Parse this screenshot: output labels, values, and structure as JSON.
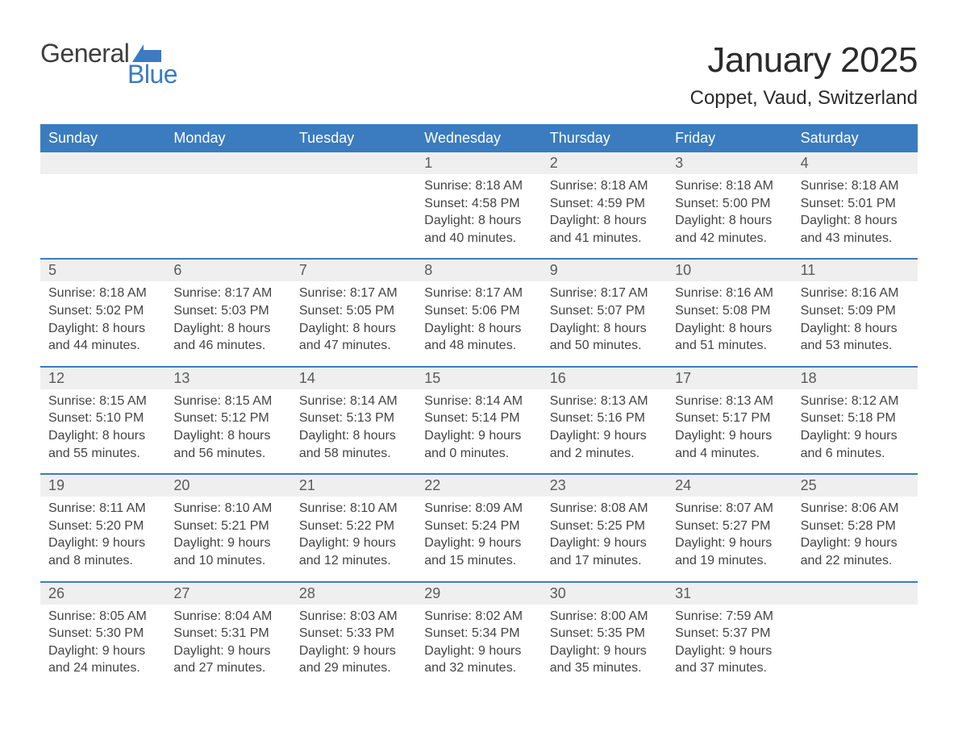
{
  "logo": {
    "word1": "General",
    "word2": "Blue",
    "icon_color": "#3a7cbf",
    "text_color": "#3e3e3e"
  },
  "title": "January 2025",
  "subtitle": "Coppet, Vaud, Switzerland",
  "colors": {
    "header_bg": "#3a7cbf",
    "header_text": "#ffffff",
    "daynum_bg": "#efefef",
    "daynum_text": "#5a5a5a",
    "body_text": "#444444",
    "week_border": "#3a7cbf",
    "page_bg": "#ffffff"
  },
  "typography": {
    "title_fontsize": 44,
    "subtitle_fontsize": 24,
    "header_fontsize": 18,
    "daynum_fontsize": 18,
    "body_fontsize": 16,
    "font_family": "Arial"
  },
  "layout": {
    "columns": 7,
    "rows": 5,
    "cell_min_height": 128
  },
  "day_names": [
    "Sunday",
    "Monday",
    "Tuesday",
    "Wednesday",
    "Thursday",
    "Friday",
    "Saturday"
  ],
  "weeks": [
    [
      {
        "day": "",
        "sunrise": "",
        "sunset": "",
        "daylight": ""
      },
      {
        "day": "",
        "sunrise": "",
        "sunset": "",
        "daylight": ""
      },
      {
        "day": "",
        "sunrise": "",
        "sunset": "",
        "daylight": ""
      },
      {
        "day": "1",
        "sunrise": "Sunrise: 8:18 AM",
        "sunset": "Sunset: 4:58 PM",
        "daylight": "Daylight: 8 hours and 40 minutes."
      },
      {
        "day": "2",
        "sunrise": "Sunrise: 8:18 AM",
        "sunset": "Sunset: 4:59 PM",
        "daylight": "Daylight: 8 hours and 41 minutes."
      },
      {
        "day": "3",
        "sunrise": "Sunrise: 8:18 AM",
        "sunset": "Sunset: 5:00 PM",
        "daylight": "Daylight: 8 hours and 42 minutes."
      },
      {
        "day": "4",
        "sunrise": "Sunrise: 8:18 AM",
        "sunset": "Sunset: 5:01 PM",
        "daylight": "Daylight: 8 hours and 43 minutes."
      }
    ],
    [
      {
        "day": "5",
        "sunrise": "Sunrise: 8:18 AM",
        "sunset": "Sunset: 5:02 PM",
        "daylight": "Daylight: 8 hours and 44 minutes."
      },
      {
        "day": "6",
        "sunrise": "Sunrise: 8:17 AM",
        "sunset": "Sunset: 5:03 PM",
        "daylight": "Daylight: 8 hours and 46 minutes."
      },
      {
        "day": "7",
        "sunrise": "Sunrise: 8:17 AM",
        "sunset": "Sunset: 5:05 PM",
        "daylight": "Daylight: 8 hours and 47 minutes."
      },
      {
        "day": "8",
        "sunrise": "Sunrise: 8:17 AM",
        "sunset": "Sunset: 5:06 PM",
        "daylight": "Daylight: 8 hours and 48 minutes."
      },
      {
        "day": "9",
        "sunrise": "Sunrise: 8:17 AM",
        "sunset": "Sunset: 5:07 PM",
        "daylight": "Daylight: 8 hours and 50 minutes."
      },
      {
        "day": "10",
        "sunrise": "Sunrise: 8:16 AM",
        "sunset": "Sunset: 5:08 PM",
        "daylight": "Daylight: 8 hours and 51 minutes."
      },
      {
        "day": "11",
        "sunrise": "Sunrise: 8:16 AM",
        "sunset": "Sunset: 5:09 PM",
        "daylight": "Daylight: 8 hours and 53 minutes."
      }
    ],
    [
      {
        "day": "12",
        "sunrise": "Sunrise: 8:15 AM",
        "sunset": "Sunset: 5:10 PM",
        "daylight": "Daylight: 8 hours and 55 minutes."
      },
      {
        "day": "13",
        "sunrise": "Sunrise: 8:15 AM",
        "sunset": "Sunset: 5:12 PM",
        "daylight": "Daylight: 8 hours and 56 minutes."
      },
      {
        "day": "14",
        "sunrise": "Sunrise: 8:14 AM",
        "sunset": "Sunset: 5:13 PM",
        "daylight": "Daylight: 8 hours and 58 minutes."
      },
      {
        "day": "15",
        "sunrise": "Sunrise: 8:14 AM",
        "sunset": "Sunset: 5:14 PM",
        "daylight": "Daylight: 9 hours and 0 minutes."
      },
      {
        "day": "16",
        "sunrise": "Sunrise: 8:13 AM",
        "sunset": "Sunset: 5:16 PM",
        "daylight": "Daylight: 9 hours and 2 minutes."
      },
      {
        "day": "17",
        "sunrise": "Sunrise: 8:13 AM",
        "sunset": "Sunset: 5:17 PM",
        "daylight": "Daylight: 9 hours and 4 minutes."
      },
      {
        "day": "18",
        "sunrise": "Sunrise: 8:12 AM",
        "sunset": "Sunset: 5:18 PM",
        "daylight": "Daylight: 9 hours and 6 minutes."
      }
    ],
    [
      {
        "day": "19",
        "sunrise": "Sunrise: 8:11 AM",
        "sunset": "Sunset: 5:20 PM",
        "daylight": "Daylight: 9 hours and 8 minutes."
      },
      {
        "day": "20",
        "sunrise": "Sunrise: 8:10 AM",
        "sunset": "Sunset: 5:21 PM",
        "daylight": "Daylight: 9 hours and 10 minutes."
      },
      {
        "day": "21",
        "sunrise": "Sunrise: 8:10 AM",
        "sunset": "Sunset: 5:22 PM",
        "daylight": "Daylight: 9 hours and 12 minutes."
      },
      {
        "day": "22",
        "sunrise": "Sunrise: 8:09 AM",
        "sunset": "Sunset: 5:24 PM",
        "daylight": "Daylight: 9 hours and 15 minutes."
      },
      {
        "day": "23",
        "sunrise": "Sunrise: 8:08 AM",
        "sunset": "Sunset: 5:25 PM",
        "daylight": "Daylight: 9 hours and 17 minutes."
      },
      {
        "day": "24",
        "sunrise": "Sunrise: 8:07 AM",
        "sunset": "Sunset: 5:27 PM",
        "daylight": "Daylight: 9 hours and 19 minutes."
      },
      {
        "day": "25",
        "sunrise": "Sunrise: 8:06 AM",
        "sunset": "Sunset: 5:28 PM",
        "daylight": "Daylight: 9 hours and 22 minutes."
      }
    ],
    [
      {
        "day": "26",
        "sunrise": "Sunrise: 8:05 AM",
        "sunset": "Sunset: 5:30 PM",
        "daylight": "Daylight: 9 hours and 24 minutes."
      },
      {
        "day": "27",
        "sunrise": "Sunrise: 8:04 AM",
        "sunset": "Sunset: 5:31 PM",
        "daylight": "Daylight: 9 hours and 27 minutes."
      },
      {
        "day": "28",
        "sunrise": "Sunrise: 8:03 AM",
        "sunset": "Sunset: 5:33 PM",
        "daylight": "Daylight: 9 hours and 29 minutes."
      },
      {
        "day": "29",
        "sunrise": "Sunrise: 8:02 AM",
        "sunset": "Sunset: 5:34 PM",
        "daylight": "Daylight: 9 hours and 32 minutes."
      },
      {
        "day": "30",
        "sunrise": "Sunrise: 8:00 AM",
        "sunset": "Sunset: 5:35 PM",
        "daylight": "Daylight: 9 hours and 35 minutes."
      },
      {
        "day": "31",
        "sunrise": "Sunrise: 7:59 AM",
        "sunset": "Sunset: 5:37 PM",
        "daylight": "Daylight: 9 hours and 37 minutes."
      },
      {
        "day": "",
        "sunrise": "",
        "sunset": "",
        "daylight": ""
      }
    ]
  ]
}
